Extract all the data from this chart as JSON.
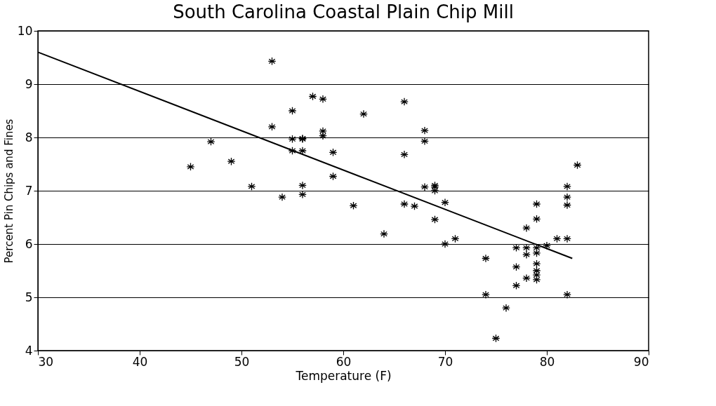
{
  "chart_data": {
    "type": "scatter",
    "title": "South Carolina Coastal Plain Chip Mill",
    "xlabel": "Temperature (F)",
    "ylabel": "Percent Pin Chips and Fines",
    "xlim": [
      30,
      90
    ],
    "xticks": [
      30,
      40,
      50,
      60,
      70,
      80,
      90
    ],
    "ylim": [
      4,
      10
    ],
    "yticks": [
      4,
      5,
      6,
      7,
      8,
      9,
      10
    ],
    "grid": "y",
    "marker": "cross",
    "series": [
      {
        "color": "#000000",
        "x": [
          45,
          47,
          49,
          51,
          53,
          53,
          54,
          55,
          55,
          55,
          56,
          56,
          56,
          56,
          56,
          57,
          58,
          58,
          58,
          59,
          59,
          61,
          62,
          64,
          66,
          66,
          66,
          67,
          68,
          68,
          68,
          69,
          69,
          69,
          69,
          70,
          70,
          71,
          74,
          74,
          75,
          76,
          77,
          77,
          77,
          78,
          78,
          78,
          78,
          79,
          79,
          79,
          79,
          79,
          79,
          79,
          79,
          80,
          81,
          82,
          82,
          82,
          82,
          82,
          83
        ],
        "values": [
          7.45,
          7.92,
          7.55,
          7.08,
          9.43,
          8.2,
          6.88,
          8.5,
          7.97,
          7.75,
          7.98,
          7.75,
          7.1,
          6.93,
          7.97,
          8.77,
          8.72,
          8.12,
          8.03,
          7.72,
          7.27,
          6.72,
          8.44,
          6.19,
          8.67,
          7.68,
          6.75,
          6.71,
          8.13,
          7.93,
          7.07,
          7.1,
          7.0,
          6.46,
          7.07,
          6.78,
          6.0,
          6.1,
          5.73,
          5.05,
          4.23,
          4.8,
          5.93,
          5.57,
          5.22,
          6.3,
          5.93,
          5.8,
          5.36,
          6.75,
          6.47,
          5.93,
          5.83,
          5.63,
          5.5,
          5.33,
          5.42,
          5.97,
          6.1,
          6.1,
          7.08,
          6.88,
          6.73,
          5.05,
          7.48
        ]
      },
      {
        "type": "line",
        "marker": "none",
        "color": "#000000",
        "x": [
          30,
          82.5
        ],
        "values": [
          9.6,
          5.73
        ]
      }
    ]
  }
}
